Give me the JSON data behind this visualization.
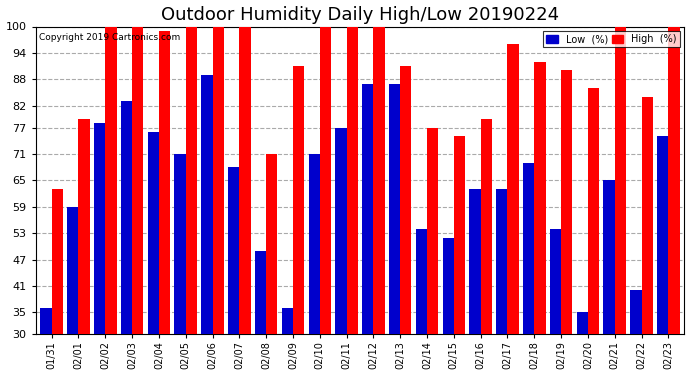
{
  "title": "Outdoor Humidity Daily High/Low 20190224",
  "copyright": "Copyright 2019 Cartronics.com",
  "dates": [
    "01/31",
    "02/01",
    "02/02",
    "02/03",
    "02/04",
    "02/05",
    "02/06",
    "02/07",
    "02/08",
    "02/09",
    "02/10",
    "02/11",
    "02/12",
    "02/13",
    "02/14",
    "02/15",
    "02/16",
    "02/17",
    "02/18",
    "02/19",
    "02/20",
    "02/21",
    "02/22",
    "02/23"
  ],
  "high": [
    63,
    79,
    100,
    100,
    99,
    100,
    100,
    100,
    71,
    91,
    100,
    100,
    100,
    91,
    77,
    75,
    79,
    96,
    92,
    90,
    86,
    100,
    84,
    100
  ],
  "low": [
    36,
    59,
    78,
    83,
    76,
    71,
    89,
    68,
    49,
    36,
    71,
    77,
    87,
    87,
    54,
    52,
    63,
    63,
    69,
    54,
    35,
    65,
    40,
    75
  ],
  "high_color": "#ff0000",
  "low_color": "#0000cc",
  "bg_color": "#ffffff",
  "grid_color": "#aaaaaa",
  "ylim_min": 30,
  "ylim_max": 100,
  "yticks": [
    30,
    35,
    41,
    47,
    53,
    59,
    65,
    71,
    77,
    82,
    88,
    94,
    100
  ],
  "title_fontsize": 13,
  "legend_low_label": "Low  (%)",
  "legend_high_label": "High  (%)"
}
